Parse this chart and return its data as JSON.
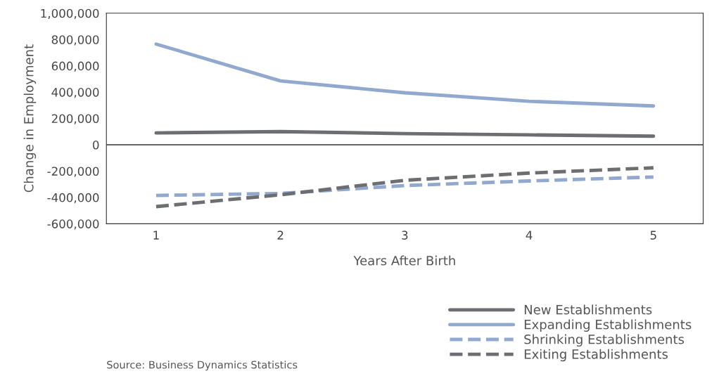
{
  "chart_data": {
    "type": "line",
    "xlabel": "Years After Birth",
    "ylabel": "Change in Employment",
    "categories": [
      "1",
      "2",
      "3",
      "4",
      "5"
    ],
    "series": [
      {
        "name": "New Establishments",
        "color": "#6d6e71",
        "line_style": "solid",
        "values": [
          90000,
          100000,
          85000,
          75000,
          65000
        ]
      },
      {
        "name": "Expanding Establishments",
        "color": "#92a9cf",
        "line_style": "solid",
        "values": [
          765000,
          485000,
          395000,
          330000,
          295000
        ]
      },
      {
        "name": "Shrinking Establishments",
        "color": "#92a9cf",
        "line_style": "dashed",
        "values": [
          -385000,
          -370000,
          -310000,
          -275000,
          -245000
        ]
      },
      {
        "name": "Exiting Establishments",
        "color": "#6d6e71",
        "line_style": "dashed",
        "values": [
          -470000,
          -380000,
          -270000,
          -215000,
          -175000
        ]
      }
    ],
    "ylim": [
      -600000,
      1000000
    ],
    "yticks": [
      {
        "value": -600000,
        "label": "-600,000"
      },
      {
        "value": -400000,
        "label": "-400,000"
      },
      {
        "value": -200000,
        "label": "-200,000"
      },
      0,
      {
        "value": 200000,
        "label": "200,000"
      },
      {
        "value": 400000,
        "label": "400,000"
      },
      {
        "value": 600000,
        "label": "600,000"
      },
      {
        "value": 800000,
        "label": "800,000"
      },
      {
        "value": 1000000,
        "label": "1,000,000"
      }
    ],
    "ref_lines": [
      {
        "axis": "y",
        "value": 0,
        "color": "#333333"
      }
    ],
    "grid": false,
    "legend": "bottom right",
    "marker": "none",
    "annotations": [
      "Source: Business Dynamics Statistics"
    ]
  }
}
